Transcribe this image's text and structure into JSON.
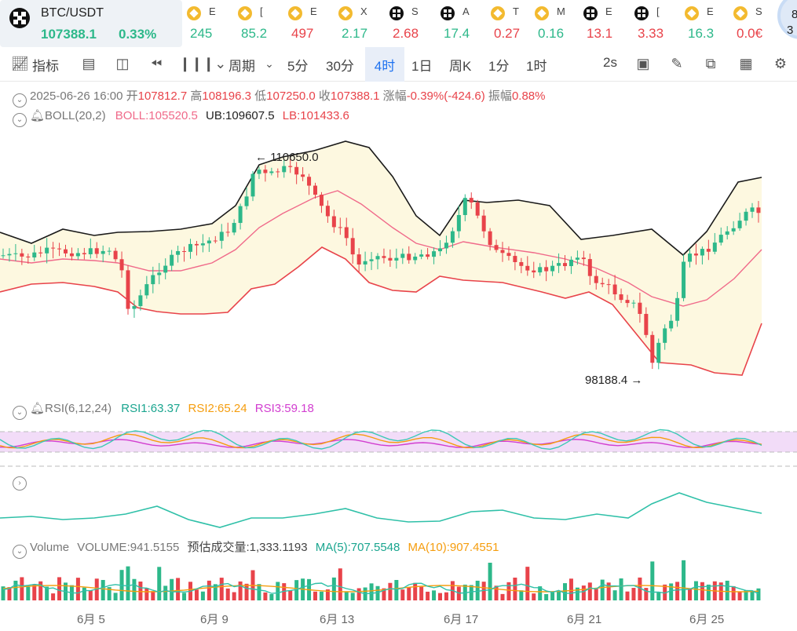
{
  "symbol": {
    "name": "BTC/USDT",
    "price": "107388.1",
    "change": "0.33%"
  },
  "tickers": [
    {
      "icon": "bnb",
      "name": "E",
      "value": "245",
      "color": "#2db88a"
    },
    {
      "icon": "bnb",
      "name": "[",
      "value": "85.2",
      "color": "#2db88a"
    },
    {
      "icon": "bnb",
      "name": "E",
      "value": "497",
      "color": "#e8434a"
    },
    {
      "icon": "bnb",
      "name": "X",
      "value": "2.17",
      "color": "#2db88a"
    },
    {
      "icon": "blk",
      "name": "S",
      "value": "2.68",
      "color": "#e8434a"
    },
    {
      "icon": "blk",
      "name": "A",
      "value": "17.4",
      "color": "#2db88a"
    },
    {
      "icon": "bnb",
      "name": "T",
      "value": "0.27",
      "color": "#e8434a"
    },
    {
      "icon": "bnb",
      "name": "M",
      "value": "0.16",
      "color": "#2db88a"
    },
    {
      "icon": "blk",
      "name": "E",
      "value": "13.1",
      "color": "#e8434a"
    },
    {
      "icon": "blk",
      "name": "[",
      "value": "3.33",
      "color": "#e8434a"
    },
    {
      "icon": "bnb",
      "name": "E",
      "value": "16.3",
      "color": "#2db88a"
    },
    {
      "icon": "bnb",
      "name": "S",
      "value": "0.0€",
      "color": "#e8434a"
    }
  ],
  "corner": {
    "a": "8",
    "b": "3 ı"
  },
  "toolbar": {
    "ind": "指标",
    "per": "周期",
    "iv": [
      "5分",
      "30分",
      "4时",
      "1日",
      "周K",
      "1分",
      "1时"
    ],
    "act": "4时",
    "rt": "2s"
  },
  "ohlc": {
    "date": "2025-06-26 16:00",
    "ol": "开",
    "o": "107812.7",
    "hl": "高",
    "h": "108196.3",
    "ll": "低",
    "l": "107250.0",
    "cl": "收",
    "c": "107388.1",
    "zl": "涨幅",
    "z": "-0.39%(-424.6)",
    "al": "振幅",
    "a": "0.88%"
  },
  "boll": {
    "t": "BOLL(20,2)",
    "m": "BOLL:105520.5",
    "u": "UB:109607.5",
    "l": "LB:101433.6",
    "hi": "← 110650.0",
    "lo": "98188.4 →"
  },
  "rsi": {
    "t": "RSI(6,12,24)",
    "r1": "RSI1:63.37",
    "r2": "RSI2:65.24",
    "r3": "RSI3:59.18"
  },
  "vol": {
    "t": "Volume",
    "v": "VOLUME:941.5155",
    "e": "预估成交量:1,333.1193",
    "m5": "MA(5):707.5548",
    "m10": "MA(10):907.4551"
  },
  "xl": [
    "6月 5",
    "6月 9",
    "6月 13",
    "6月 17",
    "6月 21",
    "6月 25"
  ],
  "col": {
    "up": "#2db88a",
    "down": "#e8434a",
    "mid": "#f06a8a",
    "band": "#fdf8e0",
    "rsi_band": "#f2dcf8"
  }
}
